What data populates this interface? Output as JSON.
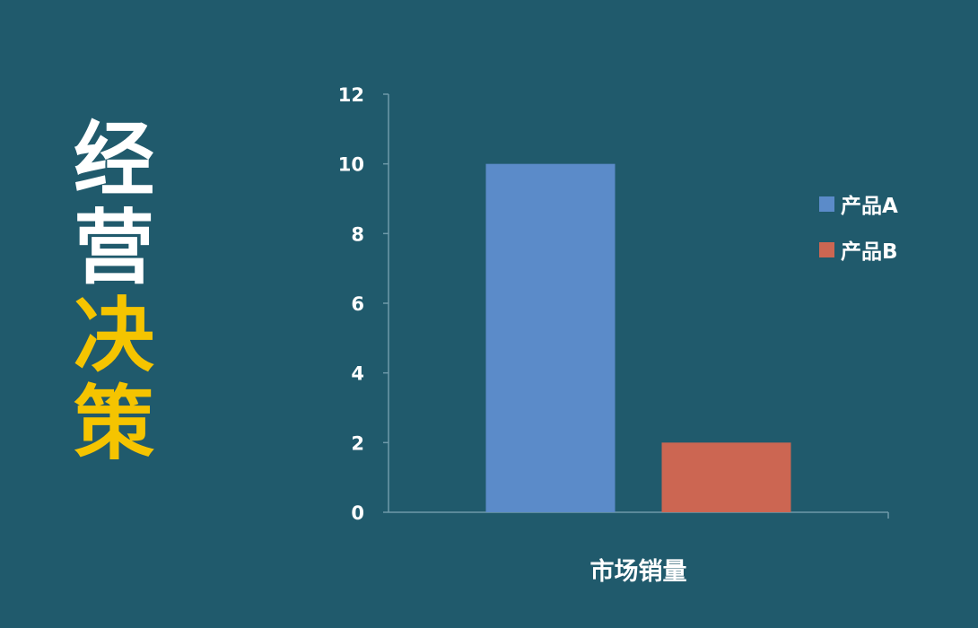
{
  "title": {
    "line1": [
      "经",
      "营"
    ],
    "line2": [
      "决",
      "策"
    ],
    "line1_color": "#ffffff",
    "line2_color": "#f5c400"
  },
  "background_color": "#205a6c",
  "chart_data": {
    "type": "bar",
    "categories": [
      "市场销量"
    ],
    "series": [
      {
        "name": "产品A",
        "values": [
          10
        ],
        "color": "#5b8bc9"
      },
      {
        "name": "产品B",
        "values": [
          2
        ],
        "color": "#cc6652"
      }
    ],
    "ylim": [
      0,
      12
    ],
    "yticks": [
      "0",
      "2",
      "4",
      "6",
      "8",
      "10",
      "12"
    ],
    "legend": "right",
    "grid": false
  }
}
